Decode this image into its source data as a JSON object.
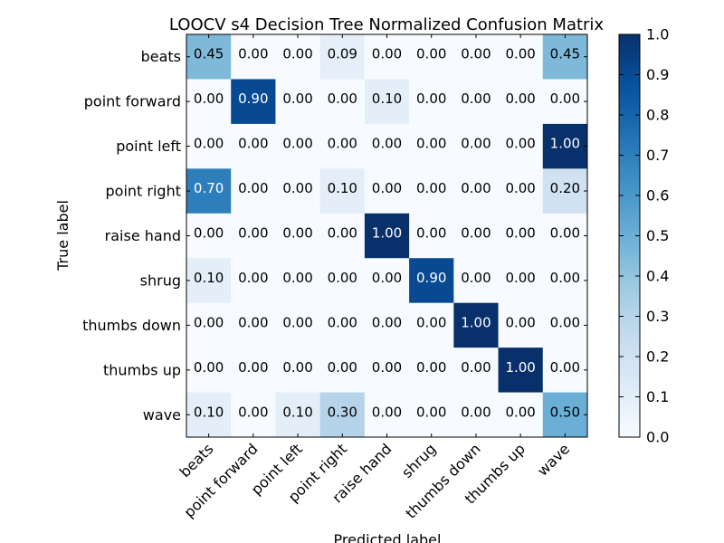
{
  "chart_data": {
    "type": "heatmap",
    "title": "LOOCV s4 Decision Tree Normalized Confusion Matrix",
    "xlabel": "Predicted label",
    "ylabel": "True label",
    "x_categories": [
      "beats",
      "point forward",
      "point left",
      "point right",
      "raise hand",
      "shrug",
      "thumbs down",
      "thumbs up",
      "wave"
    ],
    "y_categories": [
      "beats",
      "point forward",
      "point left",
      "point right",
      "raise hand",
      "shrug",
      "thumbs down",
      "thumbs up",
      "wave"
    ],
    "values": [
      [
        0.45,
        0.0,
        0.0,
        0.09,
        0.0,
        0.0,
        0.0,
        0.0,
        0.45
      ],
      [
        0.0,
        0.9,
        0.0,
        0.0,
        0.1,
        0.0,
        0.0,
        0.0,
        0.0
      ],
      [
        0.0,
        0.0,
        0.0,
        0.0,
        0.0,
        0.0,
        0.0,
        0.0,
        1.0
      ],
      [
        0.7,
        0.0,
        0.0,
        0.1,
        0.0,
        0.0,
        0.0,
        0.0,
        0.2
      ],
      [
        0.0,
        0.0,
        0.0,
        0.0,
        1.0,
        0.0,
        0.0,
        0.0,
        0.0
      ],
      [
        0.1,
        0.0,
        0.0,
        0.0,
        0.0,
        0.9,
        0.0,
        0.0,
        0.0
      ],
      [
        0.0,
        0.0,
        0.0,
        0.0,
        0.0,
        0.0,
        1.0,
        0.0,
        0.0
      ],
      [
        0.0,
        0.0,
        0.0,
        0.0,
        0.0,
        0.0,
        0.0,
        1.0,
        0.0
      ],
      [
        0.1,
        0.0,
        0.1,
        0.3,
        0.0,
        0.0,
        0.0,
        0.0,
        0.5
      ]
    ],
    "colormap": "Blues",
    "colorbar": {
      "range": [
        0.0,
        1.0
      ],
      "ticks": [
        "0.0",
        "0.1",
        "0.2",
        "0.3",
        "0.4",
        "0.5",
        "0.6",
        "0.7",
        "0.8",
        "0.9",
        "1.0"
      ]
    },
    "grid": false
  }
}
